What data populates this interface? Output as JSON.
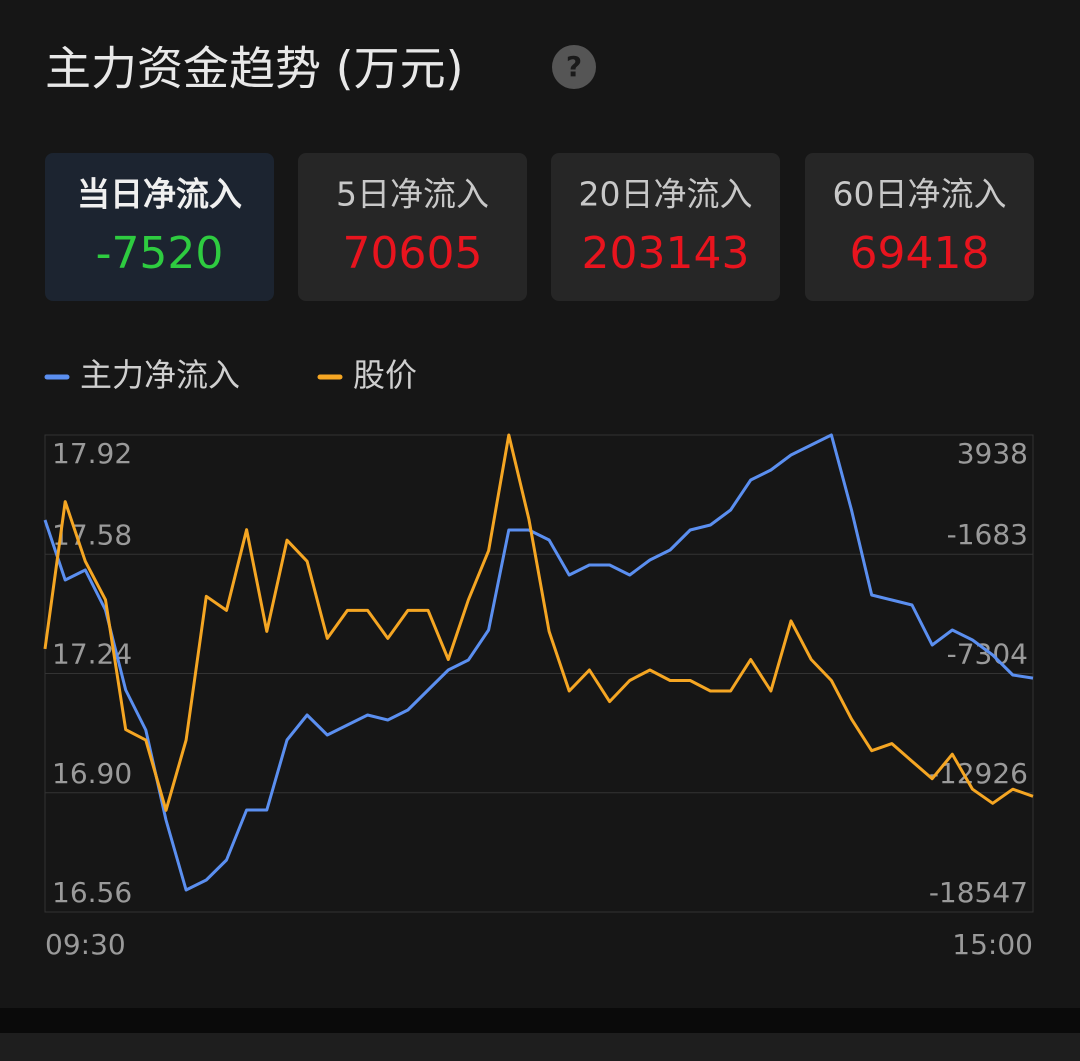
{
  "header": {
    "title": "主力资金趋势 (万元)",
    "help": "?"
  },
  "tabs": [
    {
      "label": "当日净流入",
      "value": -7520
    },
    {
      "label": "5日净流入",
      "value": 70605
    },
    {
      "label": "20日净流入",
      "value": 203143
    },
    {
      "label": "60日净流入",
      "value": 69418
    }
  ],
  "chart_data": {
    "type": "line",
    "categories": [
      "09:30",
      null,
      null,
      null,
      null,
      null,
      null,
      null,
      null,
      null,
      null,
      null,
      null,
      null,
      null,
      null,
      null,
      null,
      null,
      null,
      null,
      null,
      null,
      null,
      null,
      null,
      null,
      null,
      null,
      null,
      null,
      null,
      null,
      null,
      null,
      null,
      null,
      null,
      null,
      null,
      null,
      null,
      null,
      null,
      null,
      null,
      null,
      null,
      null,
      "15:00"
    ],
    "series": [
      {
        "name": "主力净流入",
        "color": "#5b8ff0",
        "axis": "y2",
        "values": [
          -69,
          -2897,
          -2426,
          -4311,
          -8082,
          -9968,
          -14210,
          -17510,
          -17039,
          -16096,
          -13739,
          -13739,
          -10439,
          -9261,
          -10203,
          -9732,
          -9261,
          -9496,
          -9025,
          -8082,
          -7139,
          -6668,
          -5254,
          -540,
          -540,
          -1011,
          -2661,
          -2190,
          -2190,
          -2661,
          -1954,
          -1483,
          -540,
          -304,
          403,
          1817,
          2289,
          2996,
          3467,
          3938,
          403,
          -3604,
          -3840,
          -4075,
          -5961,
          -5254,
          -5725,
          -6432,
          -7375,
          -7520
        ]
      },
      {
        "name": "股价",
        "color": "#f5a623",
        "values": [
          17.31,
          17.73,
          17.56,
          17.45,
          17.08,
          17.05,
          16.85,
          17.05,
          17.46,
          17.42,
          17.65,
          17.36,
          17.62,
          17.56,
          17.34,
          17.42,
          17.42,
          17.34,
          17.42,
          17.42,
          17.28,
          17.45,
          17.59,
          17.92,
          17.68,
          17.36,
          17.19,
          17.25,
          17.16,
          17.22,
          17.25,
          17.22,
          17.22,
          17.19,
          17.19,
          17.28,
          17.19,
          17.39,
          17.28,
          17.22,
          17.11,
          17.02,
          17.04,
          16.99,
          16.94,
          17.01,
          16.91,
          16.87,
          16.91,
          16.89
        ]
      }
    ],
    "ylim": [
      16.56,
      17.92
    ],
    "yticks": [
      17.92,
      17.58,
      17.24,
      {
        "value": 16.9,
        "label": "16.90"
      },
      16.56
    ],
    "y2lim": [
      -18547,
      3938
    ],
    "y2ticks": [
      3938,
      -1683,
      -7304,
      -12926,
      -18547
    ],
    "grid": true
  }
}
